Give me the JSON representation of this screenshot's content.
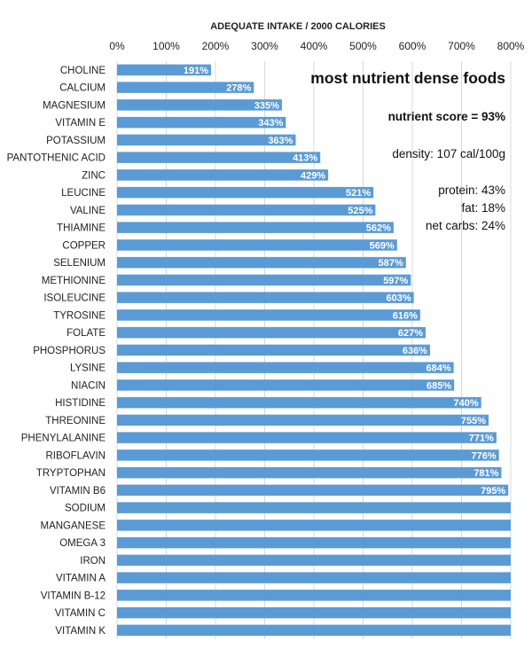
{
  "chart_data": {
    "type": "bar",
    "orientation": "horizontal",
    "title": "most nutrient dense foods",
    "xlabel": "ADEQUATE INTAKE / 2000 CALORIES",
    "xlim": [
      0,
      800
    ],
    "x_ticks": [
      "0%",
      "100%",
      "200%",
      "300%",
      "400%",
      "500%",
      "600%",
      "700%",
      "800%"
    ],
    "grid": true,
    "categories": [
      "CHOLINE",
      "CALCIUM",
      "MAGNESIUM",
      "VITAMIN E",
      "POTASSIUM",
      "PANTOTHENIC ACID",
      "ZINC",
      "LEUCINE",
      "VALINE",
      "THIAMINE",
      "COPPER",
      "SELENIUM",
      "METHIONINE",
      "ISOLEUCINE",
      "TYROSINE",
      "FOLATE",
      "PHOSPHORUS",
      "LYSINE",
      "NIACIN",
      "HISTIDINE",
      "THREONINE",
      "PHENYLALANINE",
      "RIBOFLAVIN",
      "TRYPTOPHAN",
      "VITAMIN B6",
      "SODIUM",
      "MANGANESE",
      "OMEGA 3",
      "IRON",
      "VITAMIN A",
      "VITAMIN B-12",
      "VITAMIN C",
      "VITAMIN K"
    ],
    "values": [
      191,
      278,
      335,
      343,
      363,
      413,
      429,
      521,
      525,
      562,
      569,
      587,
      597,
      603,
      616,
      627,
      636,
      684,
      685,
      740,
      755,
      771,
      776,
      781,
      795,
      800,
      800,
      800,
      800,
      800,
      800,
      800,
      800
    ],
    "data_labels": [
      "191%",
      "278%",
      "335%",
      "343%",
      "363%",
      "413%",
      "429%",
      "521%",
      "525%",
      "562%",
      "569%",
      "587%",
      "597%",
      "603%",
      "616%",
      "627%",
      "636%",
      "684%",
      "685%",
      "740%",
      "755%",
      "771%",
      "776%",
      "781%",
      "795%",
      "",
      "",
      "",
      "",
      "",
      "",
      "",
      ""
    ],
    "series_color": "#5b9bd5"
  },
  "summary": {
    "nutrient_score": "nutrient score = 93%",
    "density": "density: 107 cal/100g",
    "protein": "protein: 43%",
    "fat": "fat: 18%",
    "net_carbs": "net carbs: 24%"
  }
}
